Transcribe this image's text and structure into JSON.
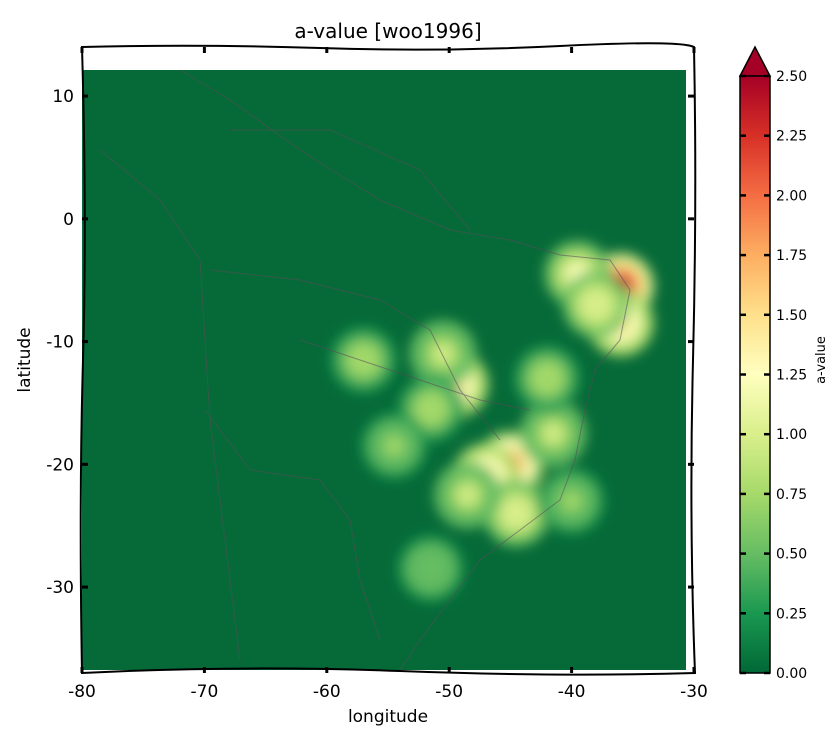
{
  "chart_data": {
    "type": "heatmap",
    "title": "a-value [woo1996]",
    "xlabel": "longitude",
    "ylabel": "latitude",
    "xlim": [
      -80,
      -30
    ],
    "ylim": [
      -37,
      14
    ],
    "x_ticks": [
      -80,
      -70,
      -60,
      -50,
      -40,
      -30
    ],
    "y_ticks": [
      10,
      0,
      -10,
      -20,
      -30
    ],
    "colorbar": {
      "label": "a-value",
      "ticks": [
        "0.00",
        "0.25",
        "0.50",
        "0.75",
        "1.00",
        "1.25",
        "1.50",
        "1.75",
        "2.00",
        "2.25",
        "2.50"
      ],
      "range": [
        0,
        2.5
      ],
      "extend": "max",
      "colormap": "RdYlGn_r",
      "colors": [
        "#006837",
        "#1a9850",
        "#66bd63",
        "#a6d96a",
        "#d9ef8b",
        "#ffffbf",
        "#fee08b",
        "#fdae61",
        "#f46d43",
        "#d73027",
        "#a50026"
      ]
    },
    "background_value": 0.0,
    "hotspots": [
      {
        "lon": -36.0,
        "lat": -5.5,
        "value": 2.4
      },
      {
        "lon": -39.5,
        "lat": -4.5,
        "value": 1.3
      },
      {
        "lon": -36.0,
        "lat": -8.5,
        "value": 1.5
      },
      {
        "lon": -38.0,
        "lat": -7.0,
        "value": 1.1
      },
      {
        "lon": -49.5,
        "lat": -13.5,
        "value": 1.4
      },
      {
        "lon": -50.5,
        "lat": -11.0,
        "value": 0.9
      },
      {
        "lon": -51.5,
        "lat": -15.5,
        "value": 0.8
      },
      {
        "lon": -45.0,
        "lat": -20.0,
        "value": 1.9
      },
      {
        "lon": -47.0,
        "lat": -21.0,
        "value": 1.6
      },
      {
        "lon": -44.5,
        "lat": -24.0,
        "value": 1.1
      },
      {
        "lon": -48.5,
        "lat": -22.5,
        "value": 0.9
      },
      {
        "lon": -41.5,
        "lat": -17.5,
        "value": 0.9
      },
      {
        "lon": -42.0,
        "lat": -13.0,
        "value": 0.8
      },
      {
        "lon": -57.0,
        "lat": -11.5,
        "value": 0.8
      },
      {
        "lon": -54.5,
        "lat": -18.5,
        "value": 0.7
      },
      {
        "lon": -51.5,
        "lat": -28.5,
        "value": 0.6
      },
      {
        "lon": -40.0,
        "lat": -23.0,
        "value": 0.7
      }
    ]
  }
}
